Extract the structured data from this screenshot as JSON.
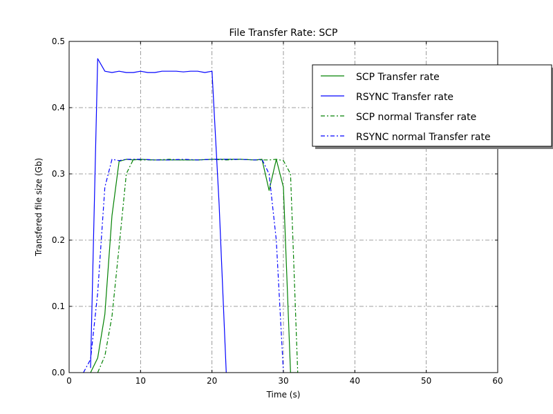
{
  "chart_data": {
    "type": "line",
    "title": "File Transfer Rate: SCP",
    "xlabel": "Time (s)",
    "ylabel": "Transfered file size (Gb)",
    "xlim": [
      0,
      60
    ],
    "ylim": [
      0,
      0.5
    ],
    "xticks": [
      0,
      10,
      20,
      30,
      40,
      50,
      60
    ],
    "yticks": [
      0.0,
      0.1,
      0.2,
      0.3,
      0.4,
      0.5
    ],
    "xtick_labels": [
      "0",
      "10",
      "20",
      "30",
      "40",
      "50",
      "60"
    ],
    "ytick_labels": [
      "0.0",
      "0.1",
      "0.2",
      "0.3",
      "0.4",
      "0.5"
    ],
    "grid": true,
    "legend_position": "top-right",
    "series": [
      {
        "name": "SCP Transfer rate",
        "color": "#008000",
        "style": "solid",
        "x": [
          3,
          4,
          5,
          6,
          7,
          8,
          9,
          10,
          12,
          14,
          16,
          18,
          20,
          22,
          24,
          26,
          27,
          28,
          29,
          30,
          31,
          32
        ],
        "y": [
          0.0,
          0.022,
          0.088,
          0.237,
          0.319,
          0.322,
          0.321,
          0.322,
          0.321,
          0.321,
          0.321,
          0.321,
          0.322,
          0.322,
          0.322,
          0.321,
          0.322,
          0.275,
          0.322,
          0.28,
          0.0,
          0.0
        ]
      },
      {
        "name": "RSYNC Transfer rate",
        "color": "#0000ff",
        "style": "solid",
        "x": [
          3,
          4,
          5,
          6,
          7,
          8,
          9,
          10,
          11,
          12,
          13,
          14,
          15,
          16,
          17,
          18,
          19,
          20,
          21,
          22
        ],
        "y": [
          0.007,
          0.474,
          0.455,
          0.453,
          0.455,
          0.453,
          0.453,
          0.455,
          0.453,
          0.453,
          0.455,
          0.455,
          0.455,
          0.454,
          0.455,
          0.455,
          0.453,
          0.455,
          0.254,
          0.0
        ]
      },
      {
        "name": "SCP normal Transfer rate",
        "color": "#008000",
        "style": "dashdot",
        "x": [
          4,
          5,
          6,
          7,
          8,
          9,
          10,
          12,
          14,
          16,
          18,
          20,
          22,
          24,
          26,
          28,
          29,
          30,
          31,
          32
        ],
        "y": [
          0.0,
          0.025,
          0.085,
          0.19,
          0.3,
          0.322,
          0.321,
          0.321,
          0.322,
          0.321,
          0.321,
          0.322,
          0.321,
          0.322,
          0.321,
          0.321,
          0.322,
          0.32,
          0.3,
          0.0
        ]
      },
      {
        "name": "RSYNC normal Transfer rate",
        "color": "#0000ff",
        "style": "dashdot",
        "x": [
          2,
          3,
          4,
          5,
          6,
          7,
          8,
          10,
          12,
          14,
          16,
          18,
          20,
          22,
          24,
          26,
          27,
          28,
          29,
          30
        ],
        "y": [
          0.0,
          0.02,
          0.12,
          0.28,
          0.322,
          0.32,
          0.322,
          0.322,
          0.321,
          0.321,
          0.322,
          0.321,
          0.322,
          0.322,
          0.322,
          0.321,
          0.322,
          0.3,
          0.2,
          0.0
        ]
      }
    ]
  }
}
